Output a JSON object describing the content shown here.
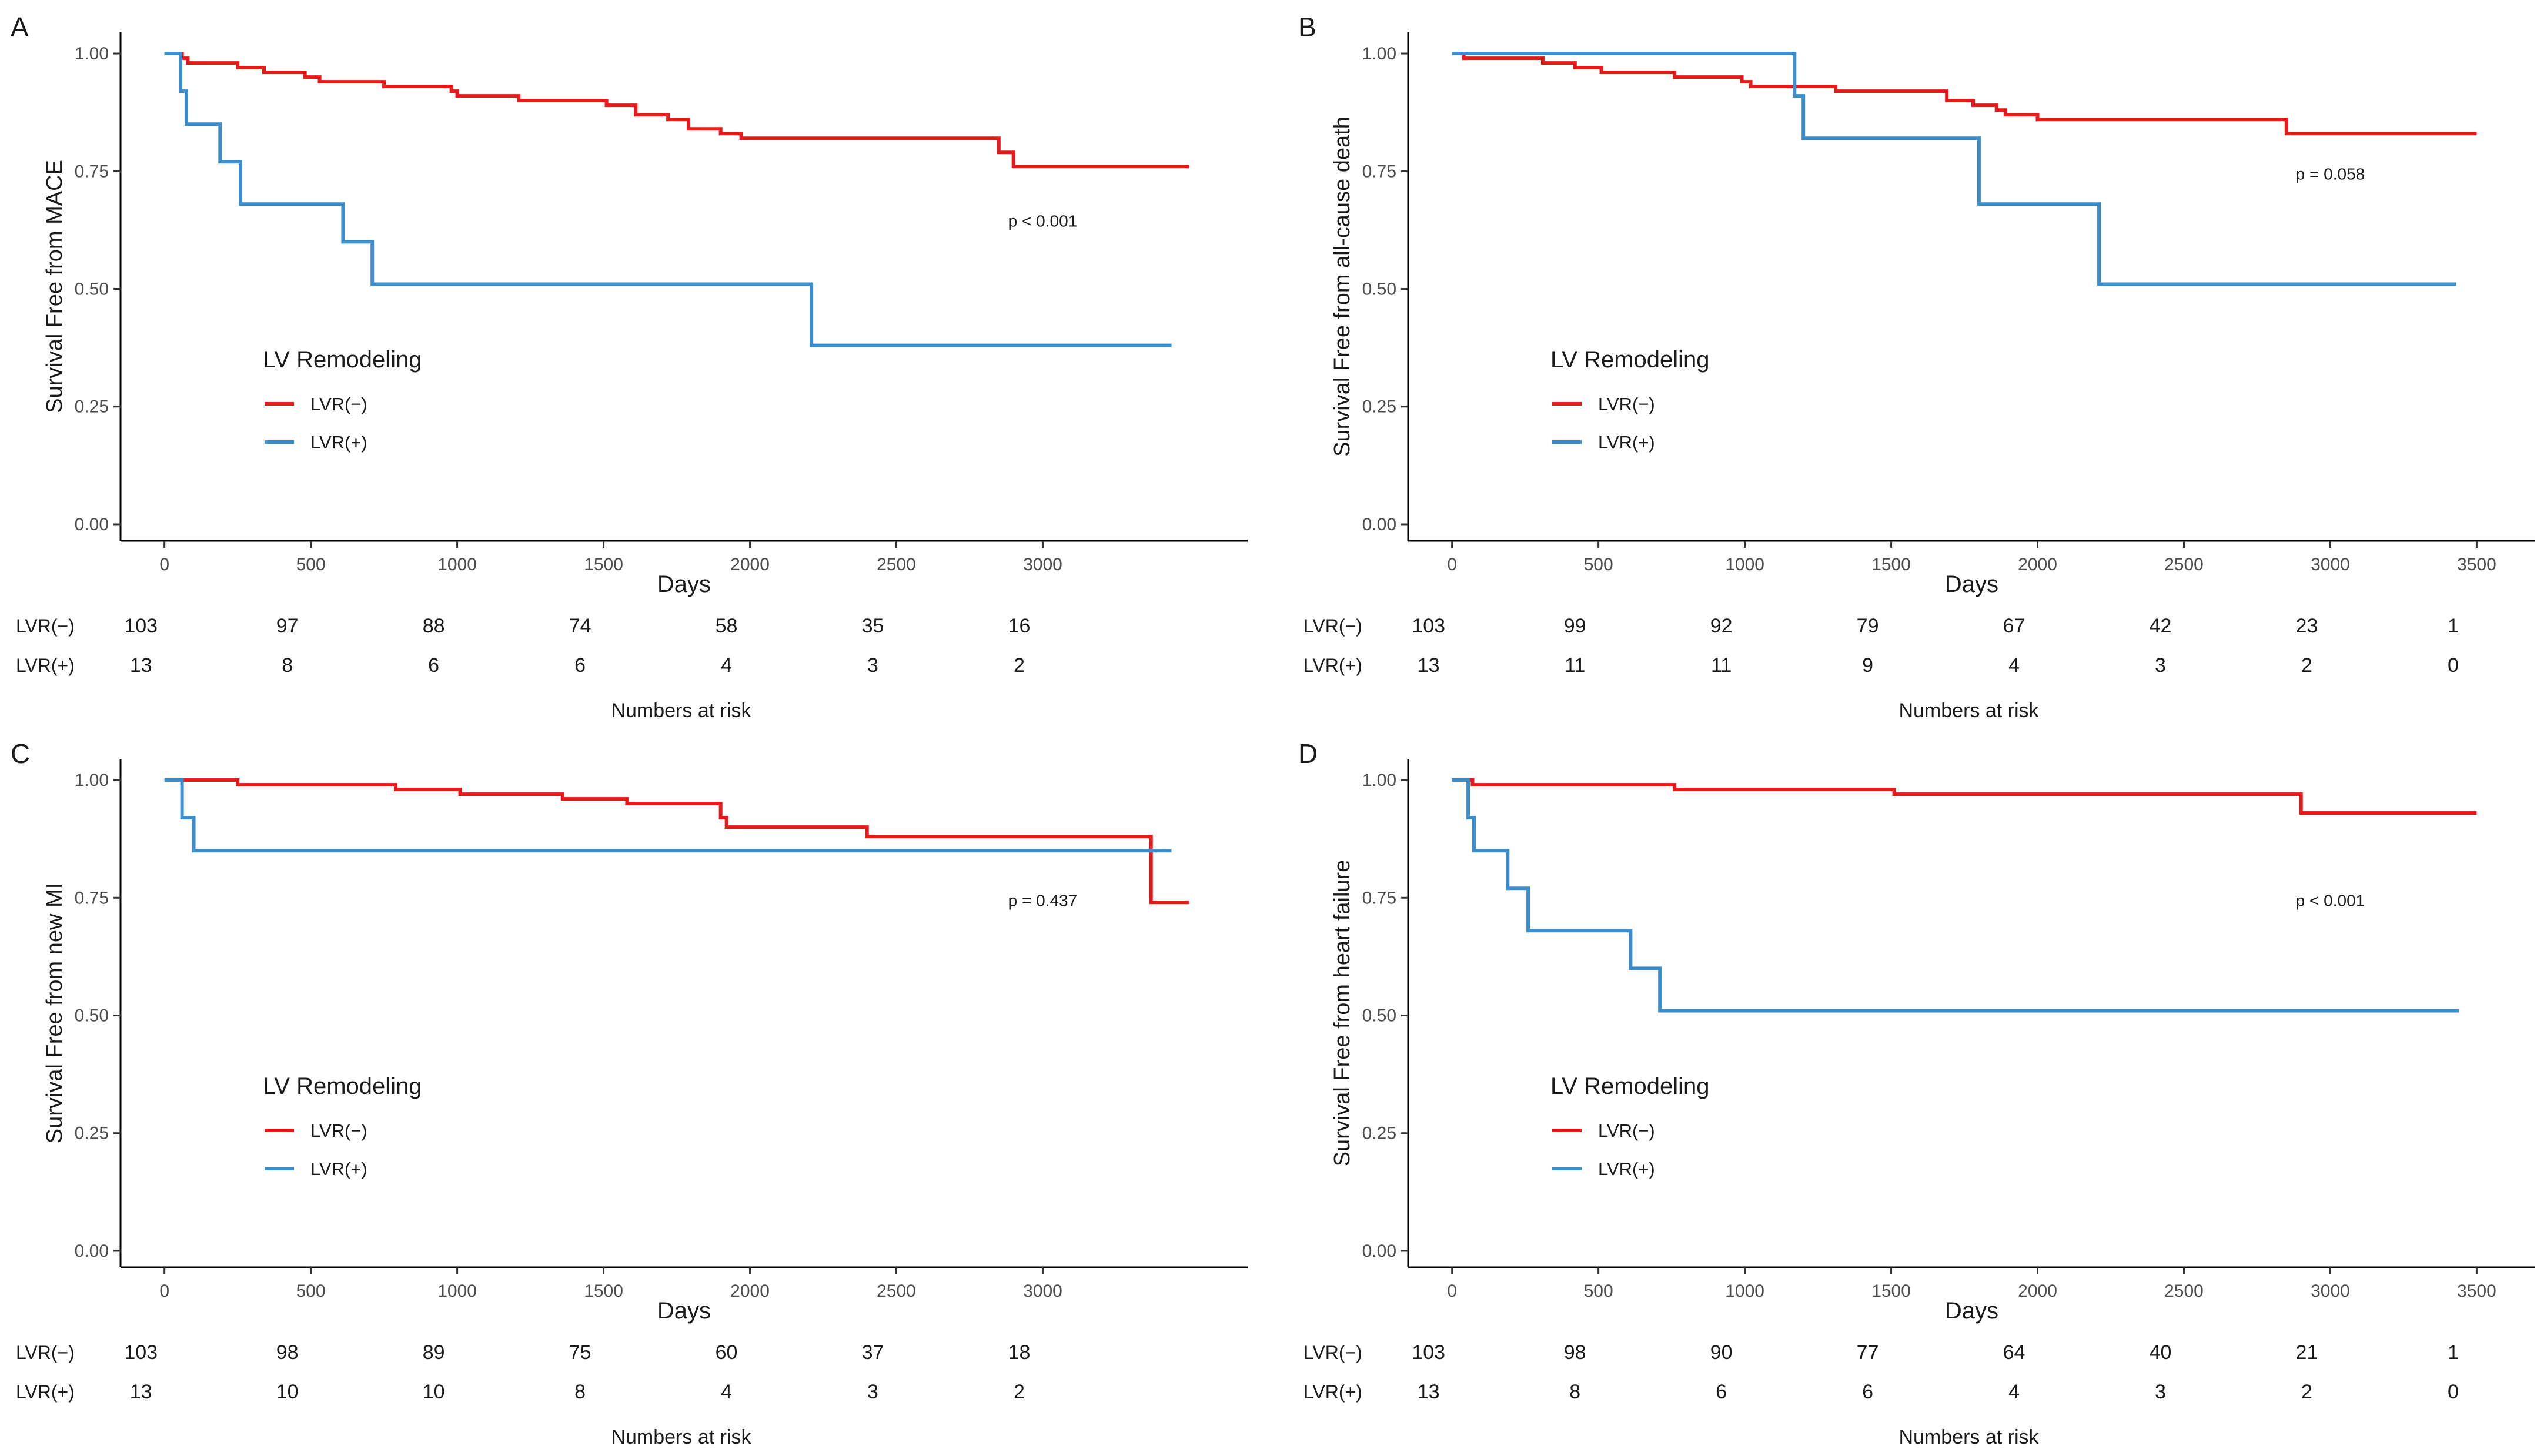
{
  "figure": {
    "colors": {
      "lvr_neg": "#e41a1c",
      "lvr_pos": "#3c8dc9",
      "axis": "#000000",
      "tick_text": "#4d4d4d"
    }
  },
  "chart_data": [
    {
      "type": "line",
      "step": true,
      "panel": "A",
      "ylabel": "Survival Free from MACE",
      "xlabel": "Days",
      "xlim": [
        -150,
        3700
      ],
      "ylim": [
        -0.035,
        1.045
      ],
      "x_ticks": [
        0,
        500,
        1000,
        1500,
        2000,
        2500,
        3000
      ],
      "x_tick_labels": [
        "0",
        "500",
        "1000",
        "1500",
        "2000",
        "2500",
        "3000"
      ],
      "y_ticks": [
        0,
        0.25,
        0.5,
        0.75,
        1.0
      ],
      "y_tick_labels": [
        "0.00",
        "0.25",
        "0.50",
        "0.75",
        "1.00"
      ],
      "legend": {
        "title": "LV Remodeling",
        "position": "lower-left",
        "labels": [
          "LVR(−)",
          "LVR(+)"
        ]
      },
      "annotation": "p < 0.001",
      "annotation_at": [
        3000,
        0.645
      ],
      "series": [
        {
          "name": "LVR(−)",
          "color": "#e41a1c",
          "points": [
            [
              0,
              1.0
            ],
            [
              60,
              0.99
            ],
            [
              80,
              0.98
            ],
            [
              250,
              0.97
            ],
            [
              340,
              0.96
            ],
            [
              480,
              0.95
            ],
            [
              530,
              0.94
            ],
            [
              750,
              0.93
            ],
            [
              980,
              0.92
            ],
            [
              1000,
              0.91
            ],
            [
              1210,
              0.9
            ],
            [
              1510,
              0.89
            ],
            [
              1610,
              0.87
            ],
            [
              1720,
              0.86
            ],
            [
              1790,
              0.84
            ],
            [
              1900,
              0.83
            ],
            [
              1970,
              0.82
            ],
            [
              2850,
              0.79
            ],
            [
              2900,
              0.76
            ],
            [
              3500,
              0.76
            ]
          ]
        },
        {
          "name": "LVR(+)",
          "color": "#3c8dc9",
          "points": [
            [
              0,
              1.0
            ],
            [
              55,
              0.92
            ],
            [
              75,
              0.85
            ],
            [
              190,
              0.77
            ],
            [
              260,
              0.68
            ],
            [
              610,
              0.6
            ],
            [
              710,
              0.51
            ],
            [
              2210,
              0.38
            ],
            [
              3440,
              0.38
            ]
          ]
        }
      ],
      "risk_table": {
        "title": "Numbers at risk",
        "times": [
          0,
          500,
          1000,
          1500,
          2000,
          2500,
          3000
        ],
        "rows": [
          {
            "label": "LVR(−)",
            "values": [
              "103",
              "97",
              "88",
              "74",
              "58",
              "35",
              "16"
            ]
          },
          {
            "label": "LVR(+)",
            "values": [
              "13",
              "8",
              "6",
              "6",
              "4",
              "3",
              "2"
            ]
          }
        ]
      }
    },
    {
      "type": "line",
      "step": true,
      "panel": "B",
      "ylabel": "Survival Free from all-cause death",
      "xlabel": "Days",
      "xlim": [
        -150,
        3700
      ],
      "ylim": [
        -0.035,
        1.045
      ],
      "x_ticks": [
        0,
        500,
        1000,
        1500,
        2000,
        2500,
        3000,
        3500
      ],
      "x_tick_labels": [
        "0",
        "500",
        "1000",
        "1500",
        "2000",
        "2500",
        "3000",
        "3500"
      ],
      "y_ticks": [
        0,
        0.25,
        0.5,
        0.75,
        1.0
      ],
      "y_tick_labels": [
        "0.00",
        "0.25",
        "0.50",
        "0.75",
        "1.00"
      ],
      "legend": {
        "title": "LV Remodeling",
        "position": "lower-left",
        "labels": [
          "LVR(−)",
          "LVR(+)"
        ]
      },
      "annotation": "p = 0.058",
      "annotation_at": [
        3000,
        0.745
      ],
      "series": [
        {
          "name": "LVR(−)",
          "color": "#e41a1c",
          "points": [
            [
              0,
              1.0
            ],
            [
              40,
              0.99
            ],
            [
              310,
              0.98
            ],
            [
              420,
              0.97
            ],
            [
              510,
              0.96
            ],
            [
              760,
              0.95
            ],
            [
              990,
              0.94
            ],
            [
              1020,
              0.93
            ],
            [
              1310,
              0.92
            ],
            [
              1690,
              0.9
            ],
            [
              1780,
              0.89
            ],
            [
              1860,
              0.88
            ],
            [
              1890,
              0.87
            ],
            [
              2000,
              0.86
            ],
            [
              2850,
              0.83
            ],
            [
              3500,
              0.83
            ]
          ]
        },
        {
          "name": "LVR(+)",
          "color": "#3c8dc9",
          "points": [
            [
              0,
              1.0
            ],
            [
              1170,
              0.91
            ],
            [
              1200,
              0.82
            ],
            [
              1800,
              0.68
            ],
            [
              2210,
              0.51
            ],
            [
              3430,
              0.51
            ]
          ]
        }
      ],
      "risk_table": {
        "title": "Numbers at risk",
        "times": [
          0,
          500,
          1000,
          1500,
          2000,
          2500,
          3000,
          3500
        ],
        "rows": [
          {
            "label": "LVR(−)",
            "values": [
              "103",
              "99",
              "92",
              "79",
              "67",
              "42",
              "23",
              "1"
            ]
          },
          {
            "label": "LVR(+)",
            "values": [
              "13",
              "11",
              "11",
              "9",
              "4",
              "3",
              "2",
              "0"
            ]
          }
        ]
      }
    },
    {
      "type": "line",
      "step": true,
      "panel": "C",
      "ylabel": "Survival Free from new MI",
      "xlabel": "Days",
      "xlim": [
        -150,
        3700
      ],
      "ylim": [
        -0.035,
        1.045
      ],
      "x_ticks": [
        0,
        500,
        1000,
        1500,
        2000,
        2500,
        3000
      ],
      "x_tick_labels": [
        "0",
        "500",
        "1000",
        "1500",
        "2000",
        "2500",
        "3000"
      ],
      "y_ticks": [
        0,
        0.25,
        0.5,
        0.75,
        1.0
      ],
      "y_tick_labels": [
        "0.00",
        "0.25",
        "0.50",
        "0.75",
        "1.00"
      ],
      "legend": {
        "title": "LV Remodeling",
        "position": "lower-left",
        "labels": [
          "LVR(−)",
          "LVR(+)"
        ]
      },
      "annotation": "p = 0.437",
      "annotation_at": [
        3000,
        0.745
      ],
      "series": [
        {
          "name": "LVR(−)",
          "color": "#e41a1c",
          "points": [
            [
              0,
              1.0
            ],
            [
              250,
              0.99
            ],
            [
              790,
              0.98
            ],
            [
              1010,
              0.97
            ],
            [
              1360,
              0.96
            ],
            [
              1580,
              0.95
            ],
            [
              1900,
              0.92
            ],
            [
              1920,
              0.9
            ],
            [
              2400,
              0.88
            ],
            [
              3370,
              0.74
            ],
            [
              3500,
              0.74
            ]
          ]
        },
        {
          "name": "LVR(+)",
          "color": "#3c8dc9",
          "points": [
            [
              0,
              1.0
            ],
            [
              60,
              0.92
            ],
            [
              100,
              0.85
            ],
            [
              3440,
              0.85
            ]
          ]
        }
      ],
      "risk_table": {
        "title": "Numbers at risk",
        "times": [
          0,
          500,
          1000,
          1500,
          2000,
          2500,
          3000
        ],
        "rows": [
          {
            "label": "LVR(−)",
            "values": [
              "103",
              "98",
              "89",
              "75",
              "60",
              "37",
              "18"
            ]
          },
          {
            "label": "LVR(+)",
            "values": [
              "13",
              "10",
              "10",
              "8",
              "4",
              "3",
              "2"
            ]
          }
        ]
      }
    },
    {
      "type": "line",
      "step": true,
      "panel": "D",
      "ylabel": "Survival Free from heart failure",
      "xlabel": "Days",
      "xlim": [
        -150,
        3700
      ],
      "ylim": [
        -0.035,
        1.045
      ],
      "x_ticks": [
        0,
        500,
        1000,
        1500,
        2000,
        2500,
        3000,
        3500
      ],
      "x_tick_labels": [
        "0",
        "500",
        "1000",
        "1500",
        "2000",
        "2500",
        "3000",
        "3500"
      ],
      "y_ticks": [
        0,
        0.25,
        0.5,
        0.75,
        1.0
      ],
      "y_tick_labels": [
        "0.00",
        "0.25",
        "0.50",
        "0.75",
        "1.00"
      ],
      "legend": {
        "title": "LV Remodeling",
        "position": "lower-left",
        "labels": [
          "LVR(−)",
          "LVR(+)"
        ]
      },
      "annotation": "p < 0.001",
      "annotation_at": [
        3000,
        0.745
      ],
      "series": [
        {
          "name": "LVR(−)",
          "color": "#e41a1c",
          "points": [
            [
              0,
              1.0
            ],
            [
              70,
              0.99
            ],
            [
              760,
              0.98
            ],
            [
              1510,
              0.97
            ],
            [
              2900,
              0.93
            ],
            [
              3500,
              0.93
            ]
          ]
        },
        {
          "name": "LVR(+)",
          "color": "#3c8dc9",
          "points": [
            [
              0,
              1.0
            ],
            [
              55,
              0.92
            ],
            [
              75,
              0.85
            ],
            [
              190,
              0.77
            ],
            [
              260,
              0.68
            ],
            [
              610,
              0.6
            ],
            [
              710,
              0.51
            ],
            [
              3440,
              0.51
            ]
          ]
        }
      ],
      "risk_table": {
        "title": "Numbers at risk",
        "times": [
          0,
          500,
          1000,
          1500,
          2000,
          2500,
          3000,
          3500
        ],
        "rows": [
          {
            "label": "LVR(−)",
            "values": [
              "103",
              "98",
              "90",
              "77",
              "64",
              "40",
              "21",
              "1"
            ]
          },
          {
            "label": "LVR(+)",
            "values": [
              "13",
              "8",
              "6",
              "6",
              "4",
              "3",
              "2",
              "0"
            ]
          }
        ]
      }
    }
  ]
}
